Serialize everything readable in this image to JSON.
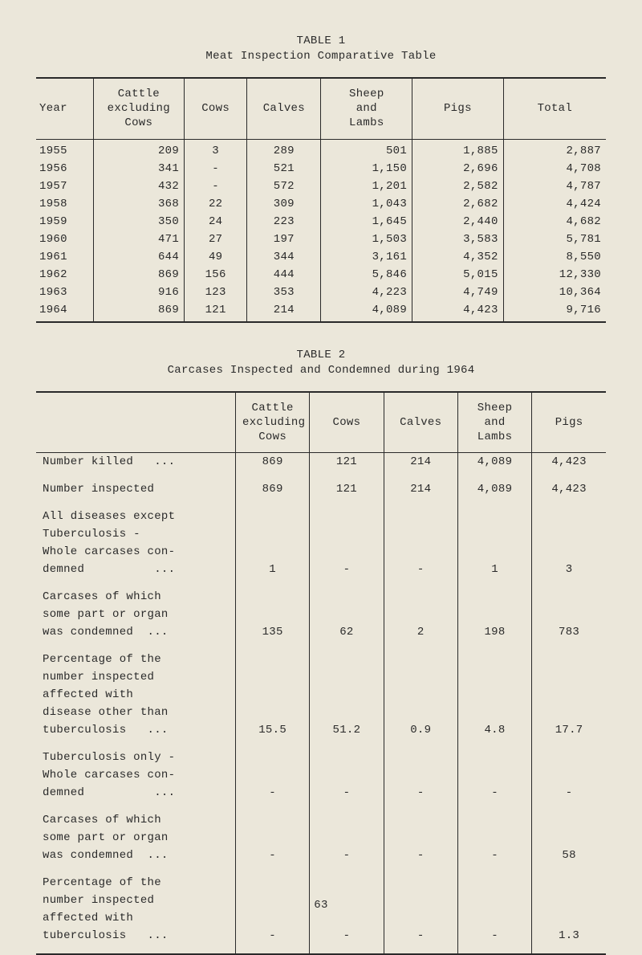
{
  "table1": {
    "label": "TABLE 1",
    "title": "Meat Inspection Comparative Table",
    "columns": [
      "Year",
      "Cattle\nexcluding\nCows",
      "Cows",
      "Calves",
      "Sheep\nand\nLambs",
      "Pigs",
      "Total"
    ],
    "rows": [
      [
        "1955",
        "209",
        "3",
        "289",
        "501",
        "1,885",
        "2,887"
      ],
      [
        "1956",
        "341",
        "-",
        "521",
        "1,150",
        "2,696",
        "4,708"
      ],
      [
        "1957",
        "432",
        "-",
        "572",
        "1,201",
        "2,582",
        "4,787"
      ],
      [
        "1958",
        "368",
        "22",
        "309",
        "1,043",
        "2,682",
        "4,424"
      ],
      [
        "1959",
        "350",
        "24",
        "223",
        "1,645",
        "2,440",
        "4,682"
      ],
      [
        "1960",
        "471",
        "27",
        "197",
        "1,503",
        "3,583",
        "5,781"
      ],
      [
        "1961",
        "644",
        "49",
        "344",
        "3,161",
        "4,352",
        "8,550"
      ],
      [
        "1962",
        "869",
        "156",
        "444",
        "5,846",
        "5,015",
        "12,330"
      ],
      [
        "1963",
        "916",
        "123",
        "353",
        "4,223",
        "4,749",
        "10,364"
      ],
      [
        "1964",
        "869",
        "121",
        "214",
        "4,089",
        "4,423",
        "9,716"
      ]
    ],
    "col_widths": [
      "10%",
      "16%",
      "11%",
      "13%",
      "16%",
      "16%",
      "18%"
    ]
  },
  "table2": {
    "label": "TABLE 2",
    "title": "Carcases Inspected and Condemned during 1964",
    "columns": [
      "",
      "Cattle\nexcluding\nCows",
      "Cows",
      "Calves",
      "Sheep\nand\nLambs",
      "Pigs"
    ],
    "groups": [
      {
        "rows": [
          {
            "label": "Number killed   ...",
            "vals": [
              "869",
              "121",
              "214",
              "4,089",
              "4,423"
            ]
          },
          {
            "label": "Number inspected",
            "vals": [
              "869",
              "121",
              "214",
              "4,089",
              "4,423"
            ]
          }
        ]
      },
      {
        "heading_lines": [
          "All diseases except",
          "Tuberculosis -"
        ],
        "rows": [
          {
            "label_lines": [
              "Whole carcases con-",
              "demned          ..."
            ],
            "vals": [
              "1",
              "-",
              "-",
              "1",
              "3"
            ]
          },
          {
            "label_lines": [
              "Carcases of which",
              "some part or organ",
              "was condemned  ..."
            ],
            "vals": [
              "135",
              "62",
              "2",
              "198",
              "783"
            ]
          },
          {
            "label_lines": [
              "Percentage of the",
              "number inspected",
              "affected with",
              "disease other than",
              "tuberculosis   ..."
            ],
            "vals": [
              "15.5",
              "51.2",
              "0.9",
              "4.8",
              "17.7"
            ]
          }
        ]
      },
      {
        "heading_lines": [
          "Tuberculosis only -"
        ],
        "rows": [
          {
            "label_lines": [
              "Whole carcases con-",
              "demned          ..."
            ],
            "vals": [
              "-",
              "-",
              "-",
              "-",
              "-"
            ]
          },
          {
            "label_lines": [
              "Carcases of which",
              "some part or organ",
              "was condemned  ..."
            ],
            "vals": [
              "-",
              "-",
              "-",
              "-",
              "58"
            ]
          },
          {
            "label_lines": [
              "Percentage of the",
              "number inspected",
              "affected with",
              "tuberculosis   ..."
            ],
            "vals": [
              "-",
              "-",
              "-",
              "-",
              "1.3"
            ]
          }
        ]
      }
    ]
  },
  "page_number": "63",
  "colors": {
    "bg": "#ebe7da",
    "text": "#2a2a2a",
    "rule": "#2a2a2a"
  },
  "font": {
    "family": "Courier New",
    "size_pt": 14
  }
}
